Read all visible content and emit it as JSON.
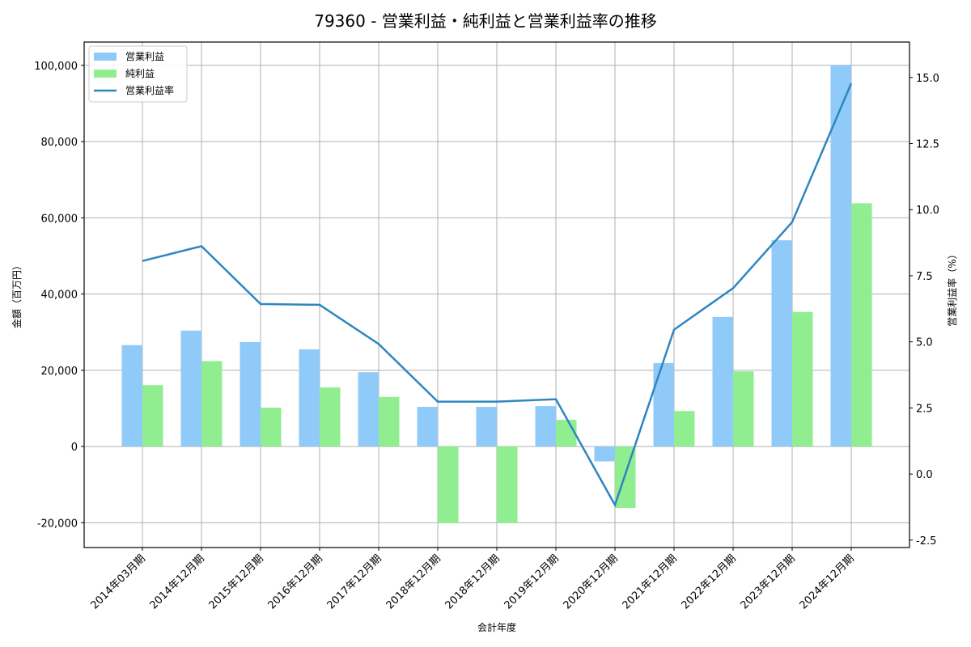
{
  "chart_data": {
    "type": "bar+line",
    "title": "79360 - 営業利益・純利益と営業利益率の推移",
    "xlabel": "会計年度",
    "ylabel": "金額（百万円）",
    "y2label": "営業利益率（%）",
    "categories": [
      "2014年03月期",
      "2014年12月期",
      "2015年12月期",
      "2016年12月期",
      "2017年12月期",
      "2018年12月期",
      "2018年12月期",
      "2019年12月期",
      "2020年12月期",
      "2021年12月期",
      "2022年12月期",
      "2023年12月期",
      "2024年12月期"
    ],
    "series": [
      {
        "name": "営業利益",
        "type": "bar",
        "axis": "left",
        "color": "#90CAF9",
        "values": [
          26600,
          30400,
          27400,
          25500,
          19500,
          10400,
          10400,
          10600,
          -3900,
          21900,
          34000,
          54100,
          100000
        ]
      },
      {
        "name": "純利益",
        "type": "bar",
        "axis": "left",
        "color": "#90EE90",
        "values": [
          16100,
          22400,
          10200,
          15500,
          13000,
          -20100,
          -20100,
          7000,
          -16100,
          9300,
          19700,
          35300,
          63800
        ]
      },
      {
        "name": "営業利益率",
        "type": "line",
        "axis": "right",
        "color": "#2E86C1",
        "values": [
          8.06,
          8.62,
          6.43,
          6.4,
          4.92,
          2.74,
          2.74,
          2.83,
          -1.17,
          5.46,
          7.03,
          9.53,
          14.78
        ]
      }
    ],
    "ylim": [
      -26500,
      106100
    ],
    "y2lim": [
      -2.78,
      16.34
    ],
    "yticks": [
      -20000,
      0,
      20000,
      40000,
      60000,
      80000,
      100000
    ],
    "ytick_labels": [
      "-20,000",
      "0",
      "20,000",
      "40,000",
      "60,000",
      "80,000",
      "100,000"
    ],
    "y2ticks": [
      -2.5,
      0.0,
      2.5,
      5.0,
      7.5,
      10.0,
      12.5,
      15.0
    ],
    "y2tick_labels": [
      "-2.5",
      "0.0",
      "2.5",
      "5.0",
      "7.5",
      "10.0",
      "12.5",
      "15.0"
    ],
    "grid": true,
    "legend_position": "upper left"
  }
}
